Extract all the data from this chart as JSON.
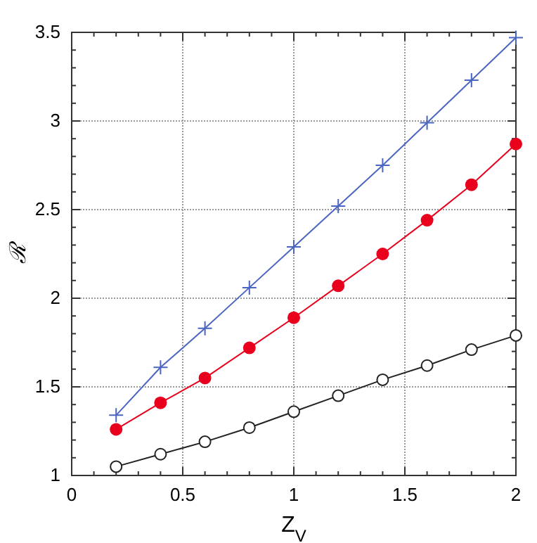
{
  "chart_data": {
    "type": "line",
    "xlabel": "Z$_{V}$",
    "ylabel": "ℛ",
    "x": [
      0.2,
      0.4,
      0.6,
      0.8,
      1.0,
      1.2,
      1.4,
      1.6,
      1.8,
      2.0
    ],
    "xlim": [
      0,
      2
    ],
    "xticks": [
      0,
      0.5,
      1,
      1.5,
      2
    ],
    "ylim": [
      1,
      3.5
    ],
    "yticks": [
      1,
      1.5,
      2,
      2.5,
      3,
      3.5
    ],
    "grid": true,
    "line_style": "solid",
    "series": [
      {
        "color": "#4a66c0",
        "marker": "cross",
        "values": [
          1.34,
          1.61,
          1.83,
          2.06,
          2.29,
          2.52,
          2.75,
          2.99,
          3.23,
          3.47
        ]
      },
      {
        "color": "#e8001c",
        "marker": "circle",
        "values": [
          1.26,
          1.41,
          1.55,
          1.72,
          1.89,
          2.07,
          2.25,
          2.44,
          2.64,
          2.87
        ]
      },
      {
        "color": "#222222",
        "marker": "circle_open",
        "values": [
          1.05,
          1.12,
          1.19,
          1.27,
          1.36,
          1.45,
          1.54,
          1.62,
          1.71,
          1.79
        ]
      }
    ]
  }
}
